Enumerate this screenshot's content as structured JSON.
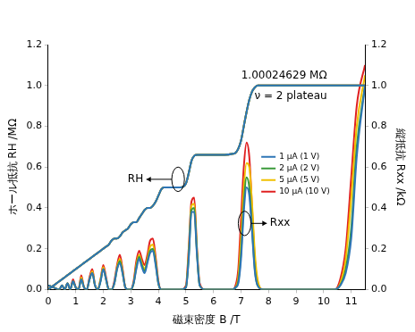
{
  "chart_data": {
    "type": "line",
    "x_label": "磁束密度 B /T",
    "y_label": "ホール抵抗 RH /MΩ",
    "y2_label": "縦抵抗 Rxx /kΩ",
    "xlim": [
      0,
      11.5
    ],
    "xticks": [
      0,
      1,
      2,
      3,
      4,
      5,
      6,
      7,
      8,
      9,
      10,
      11
    ],
    "ylim": [
      0,
      1.2
    ],
    "yticks": [
      {
        "value": 0,
        "label": "0.0"
      },
      0.2,
      0.4,
      0.6,
      0.8,
      {
        "value": 1,
        "label": "1.0"
      },
      1.2
    ],
    "y2lim": [
      0,
      1.2
    ],
    "y2ticks": [
      {
        "value": 0,
        "label": "0.0"
      },
      0.2,
      0.4,
      0.6,
      0.8,
      {
        "value": 1,
        "label": "1.0"
      },
      1.2
    ],
    "grid": false,
    "legend": "right",
    "annotations": [
      {
        "text": "1.00024629 MΩ"
      },
      {
        "text": "ν = 2 plateau"
      },
      {
        "text": "RH"
      },
      {
        "text": "Rxx"
      }
    ],
    "x": [
      0,
      0.2,
      0.4,
      0.5,
      0.6,
      0.7,
      0.8,
      0.9,
      1.0,
      1.1,
      1.2,
      1.3,
      1.4,
      1.5,
      1.6,
      1.7,
      1.8,
      1.9,
      2.0,
      2.1,
      2.2,
      2.3,
      2.4,
      2.5,
      2.6,
      2.7,
      2.8,
      2.9,
      3.0,
      3.1,
      3.2,
      3.3,
      3.4,
      3.5,
      3.6,
      3.7,
      3.8,
      3.9,
      4.0,
      4.1,
      4.2,
      4.4,
      4.6,
      4.8,
      5.0,
      5.1,
      5.2,
      5.3,
      5.4,
      5.5,
      5.7,
      6.0,
      6.4,
      6.7,
      6.8,
      6.9,
      7.0,
      7.1,
      7.2,
      7.3,
      7.4,
      7.5,
      7.6,
      7.8,
      8.0,
      9.0,
      10.0,
      10.4,
      10.6,
      10.8,
      11.0,
      11.2,
      11.5
    ],
    "series": [
      {
        "name": "1 µA (1 V)",
        "color": "#2e75b6",
        "values": [
          0,
          0.02,
          0.04,
          0.05,
          0.06,
          0.07,
          0.08,
          0.09,
          0.1,
          0.11,
          0.12,
          0.13,
          0.14,
          0.15,
          0.16,
          0.17,
          0.18,
          0.19,
          0.2,
          0.21,
          0.22,
          0.24,
          0.25,
          0.25,
          0.26,
          0.28,
          0.29,
          0.3,
          0.32,
          0.33,
          0.33,
          0.35,
          0.37,
          0.39,
          0.4,
          0.4,
          0.41,
          0.43,
          0.46,
          0.49,
          0.5,
          0.5,
          0.5,
          0.5,
          0.52,
          0.57,
          0.63,
          0.655,
          0.66,
          0.66,
          0.66,
          0.66,
          0.66,
          0.665,
          0.67,
          0.69,
          0.73,
          0.8,
          0.87,
          0.93,
          0.97,
          0.99,
          1,
          1,
          1,
          1,
          1,
          1,
          1,
          1,
          1,
          1,
          1
        ]
      },
      {
        "name": "2 µA (2 V)",
        "color": "#3a9a3a",
        "values": [
          0,
          0.02,
          0.04,
          0.05,
          0.06,
          0.07,
          0.08,
          0.09,
          0.1,
          0.11,
          0.12,
          0.13,
          0.14,
          0.15,
          0.16,
          0.17,
          0.18,
          0.19,
          0.2,
          0.21,
          0.22,
          0.24,
          0.25,
          0.25,
          0.26,
          0.28,
          0.29,
          0.3,
          0.32,
          0.33,
          0.33,
          0.35,
          0.37,
          0.39,
          0.4,
          0.4,
          0.41,
          0.43,
          0.46,
          0.49,
          0.5,
          0.5,
          0.5,
          0.5,
          0.52,
          0.57,
          0.63,
          0.655,
          0.66,
          0.66,
          0.66,
          0.66,
          0.66,
          0.665,
          0.67,
          0.69,
          0.73,
          0.8,
          0.87,
          0.93,
          0.97,
          0.99,
          1,
          1,
          1,
          1,
          1,
          1,
          1,
          1,
          1,
          1,
          1
        ]
      },
      {
        "name": "5 µA (5 V)",
        "color": "#f0c000",
        "values": [
          0,
          0.02,
          0.04,
          0.05,
          0.06,
          0.07,
          0.08,
          0.09,
          0.1,
          0.11,
          0.12,
          0.13,
          0.14,
          0.15,
          0.16,
          0.17,
          0.18,
          0.19,
          0.2,
          0.21,
          0.22,
          0.24,
          0.25,
          0.25,
          0.26,
          0.28,
          0.29,
          0.3,
          0.32,
          0.33,
          0.33,
          0.35,
          0.37,
          0.39,
          0.4,
          0.4,
          0.41,
          0.43,
          0.46,
          0.49,
          0.5,
          0.5,
          0.5,
          0.5,
          0.52,
          0.57,
          0.63,
          0.655,
          0.66,
          0.66,
          0.66,
          0.66,
          0.66,
          0.665,
          0.67,
          0.69,
          0.73,
          0.8,
          0.87,
          0.93,
          0.97,
          0.99,
          1,
          1,
          1,
          1,
          1,
          1,
          1,
          1,
          1,
          1,
          1
        ]
      },
      {
        "name": "10 µA (10 V)",
        "color": "#e02020",
        "values": [
          0,
          0.02,
          0.04,
          0.05,
          0.06,
          0.07,
          0.08,
          0.09,
          0.1,
          0.11,
          0.12,
          0.13,
          0.14,
          0.15,
          0.16,
          0.17,
          0.18,
          0.19,
          0.2,
          0.21,
          0.22,
          0.24,
          0.25,
          0.25,
          0.26,
          0.28,
          0.29,
          0.3,
          0.32,
          0.33,
          0.33,
          0.35,
          0.37,
          0.39,
          0.4,
          0.4,
          0.41,
          0.43,
          0.46,
          0.49,
          0.5,
          0.5,
          0.5,
          0.5,
          0.52,
          0.57,
          0.63,
          0.655,
          0.66,
          0.66,
          0.66,
          0.66,
          0.66,
          0.665,
          0.67,
          0.69,
          0.73,
          0.8,
          0.87,
          0.93,
          0.97,
          0.99,
          1,
          1,
          1,
          1,
          1,
          1,
          1,
          1,
          1,
          1,
          1
        ]
      },
      {
        "name": "1 µA (1 V)",
        "color": "#2e75b6",
        "axis": "y2",
        "values": [
          0.02,
          0.01,
          0,
          0.02,
          0,
          0.03,
          0,
          0.04,
          0.01,
          0,
          0.05,
          0.01,
          0,
          0.05,
          0.08,
          0.02,
          0,
          0.04,
          0.1,
          0.05,
          0,
          0,
          0.03,
          0.1,
          0.13,
          0.08,
          0.01,
          0,
          0,
          0.03,
          0.1,
          0.15,
          0.11,
          0.08,
          0.13,
          0.18,
          0.19,
          0.12,
          0.03,
          0,
          0,
          0,
          0,
          0,
          0.01,
          0.15,
          0.38,
          0.38,
          0.17,
          0.02,
          0,
          0,
          0,
          0,
          0.01,
          0.03,
          0.15,
          0.38,
          0.5,
          0.46,
          0.28,
          0.09,
          0.02,
          0,
          0,
          0,
          0,
          0,
          0.02,
          0.08,
          0.25,
          0.65,
          1
        ]
      },
      {
        "name": "2 µA (2 V)",
        "color": "#3a9a3a",
        "axis": "y2",
        "values": [
          0.02,
          0.01,
          0,
          0.02,
          0,
          0.03,
          0,
          0.04,
          0.01,
          0,
          0.05,
          0.01,
          0,
          0.05,
          0.08,
          0.02,
          0,
          0.04,
          0.1,
          0.05,
          0,
          0,
          0.03,
          0.1,
          0.14,
          0.08,
          0.01,
          0,
          0,
          0.03,
          0.11,
          0.16,
          0.12,
          0.09,
          0.14,
          0.19,
          0.2,
          0.13,
          0.03,
          0,
          0,
          0,
          0,
          0,
          0.01,
          0.16,
          0.39,
          0.4,
          0.18,
          0.02,
          0,
          0,
          0,
          0,
          0.01,
          0.04,
          0.18,
          0.42,
          0.55,
          0.5,
          0.3,
          0.1,
          0.02,
          0,
          0,
          0,
          0,
          0,
          0.02,
          0.1,
          0.3,
          0.7,
          1
        ]
      },
      {
        "name": "5 µA (5 V)",
        "color": "#f0c000",
        "axis": "y2",
        "values": [
          0.02,
          0.01,
          0,
          0.02,
          0,
          0.03,
          0,
          0.04,
          0.01,
          0,
          0.06,
          0.01,
          0,
          0.05,
          0.09,
          0.02,
          0,
          0.05,
          0.11,
          0.05,
          0,
          0,
          0.03,
          0.11,
          0.15,
          0.09,
          0.01,
          0,
          0,
          0.03,
          0.12,
          0.17,
          0.13,
          0.1,
          0.15,
          0.21,
          0.22,
          0.14,
          0.03,
          0,
          0,
          0,
          0,
          0,
          0.01,
          0.18,
          0.41,
          0.42,
          0.19,
          0.02,
          0,
          0,
          0,
          0,
          0.01,
          0.06,
          0.25,
          0.5,
          0.62,
          0.6,
          0.42,
          0.18,
          0.05,
          0,
          0,
          0,
          0,
          0,
          0.03,
          0.15,
          0.45,
          0.8,
          1.05
        ]
      },
      {
        "name": "10 µA (10 V)",
        "color": "#e02020",
        "axis": "y2",
        "values": [
          0.02,
          0.01,
          0,
          0.02,
          0,
          0.03,
          0,
          0.05,
          0.01,
          0,
          0.07,
          0.01,
          0,
          0.06,
          0.1,
          0.02,
          0,
          0.05,
          0.12,
          0.06,
          0,
          0,
          0.04,
          0.12,
          0.17,
          0.1,
          0.01,
          0,
          0,
          0.04,
          0.14,
          0.19,
          0.15,
          0.12,
          0.17,
          0.24,
          0.25,
          0.16,
          0.04,
          0,
          0,
          0,
          0,
          0,
          0.02,
          0.2,
          0.43,
          0.45,
          0.2,
          0.03,
          0,
          0,
          0,
          0,
          0.02,
          0.1,
          0.35,
          0.6,
          0.72,
          0.65,
          0.4,
          0.15,
          0.04,
          0,
          0,
          0,
          0,
          0,
          0.05,
          0.2,
          0.55,
          0.9,
          1.1
        ]
      }
    ]
  }
}
